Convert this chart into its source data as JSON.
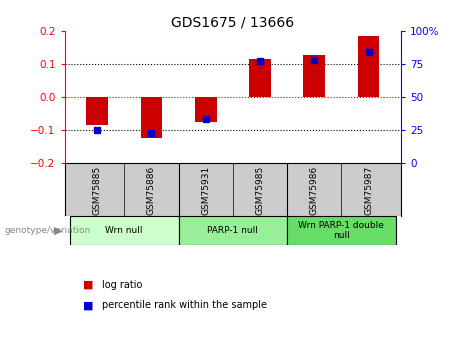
{
  "title": "GDS1675 / 13666",
  "samples": [
    "GSM75885",
    "GSM75886",
    "GSM75931",
    "GSM75985",
    "GSM75986",
    "GSM75987"
  ],
  "log_ratios": [
    -0.085,
    -0.125,
    -0.075,
    0.115,
    0.128,
    0.185
  ],
  "percentile_ranks": [
    25,
    23,
    33,
    77,
    78,
    84
  ],
  "groups": [
    {
      "label": "Wrn null",
      "start": 0,
      "end": 2,
      "color": "#ccffcc"
    },
    {
      "label": "PARP-1 null",
      "start": 2,
      "end": 4,
      "color": "#99ee99"
    },
    {
      "label": "Wrn PARP-1 double\nnull",
      "start": 4,
      "end": 6,
      "color": "#66dd66"
    }
  ],
  "bar_color": "#cc0000",
  "dot_color": "#0000cc",
  "ylim_left": [
    -0.2,
    0.2
  ],
  "ylim_right": [
    0,
    100
  ],
  "yticks_left": [
    -0.2,
    -0.1,
    0,
    0.1,
    0.2
  ],
  "yticks_right": [
    0,
    25,
    50,
    75,
    100
  ],
  "hlines": [
    -0.1,
    0,
    0.1
  ],
  "bg_color": "#ffffff",
  "plot_bg_color": "#ffffff"
}
